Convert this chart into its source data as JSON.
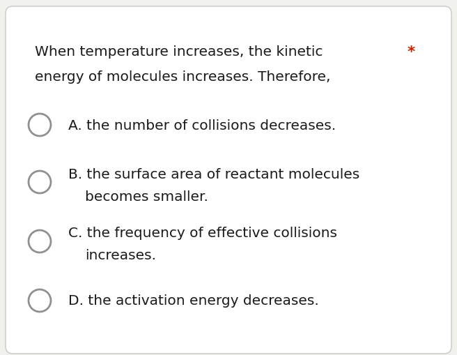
{
  "background_color": "#f0f0ec",
  "card_color": "#ffffff",
  "border_color": "#c8c8c8",
  "question_line1": "When temperature increases, the kinetic",
  "question_line2": "energy of molecules increases. Therefore,",
  "asterisk": "*",
  "asterisk_color": "#cc2200",
  "options": [
    {
      "label": "A.",
      "text_line1": "the number of collisions decreases.",
      "text_line2": null
    },
    {
      "label": "B.",
      "text_line1": "the surface area of reactant molecules",
      "text_line2": "becomes smaller."
    },
    {
      "label": "C.",
      "text_line1": "the frequency of effective collisions",
      "text_line2": "increases."
    },
    {
      "label": "D.",
      "text_line1": "the activation energy decreases.",
      "text_line2": null
    }
  ],
  "text_color": "#1a1a1a",
  "circle_edge_color": "#909090",
  "font_size_question": 14.5,
  "font_size_options": 14.5
}
